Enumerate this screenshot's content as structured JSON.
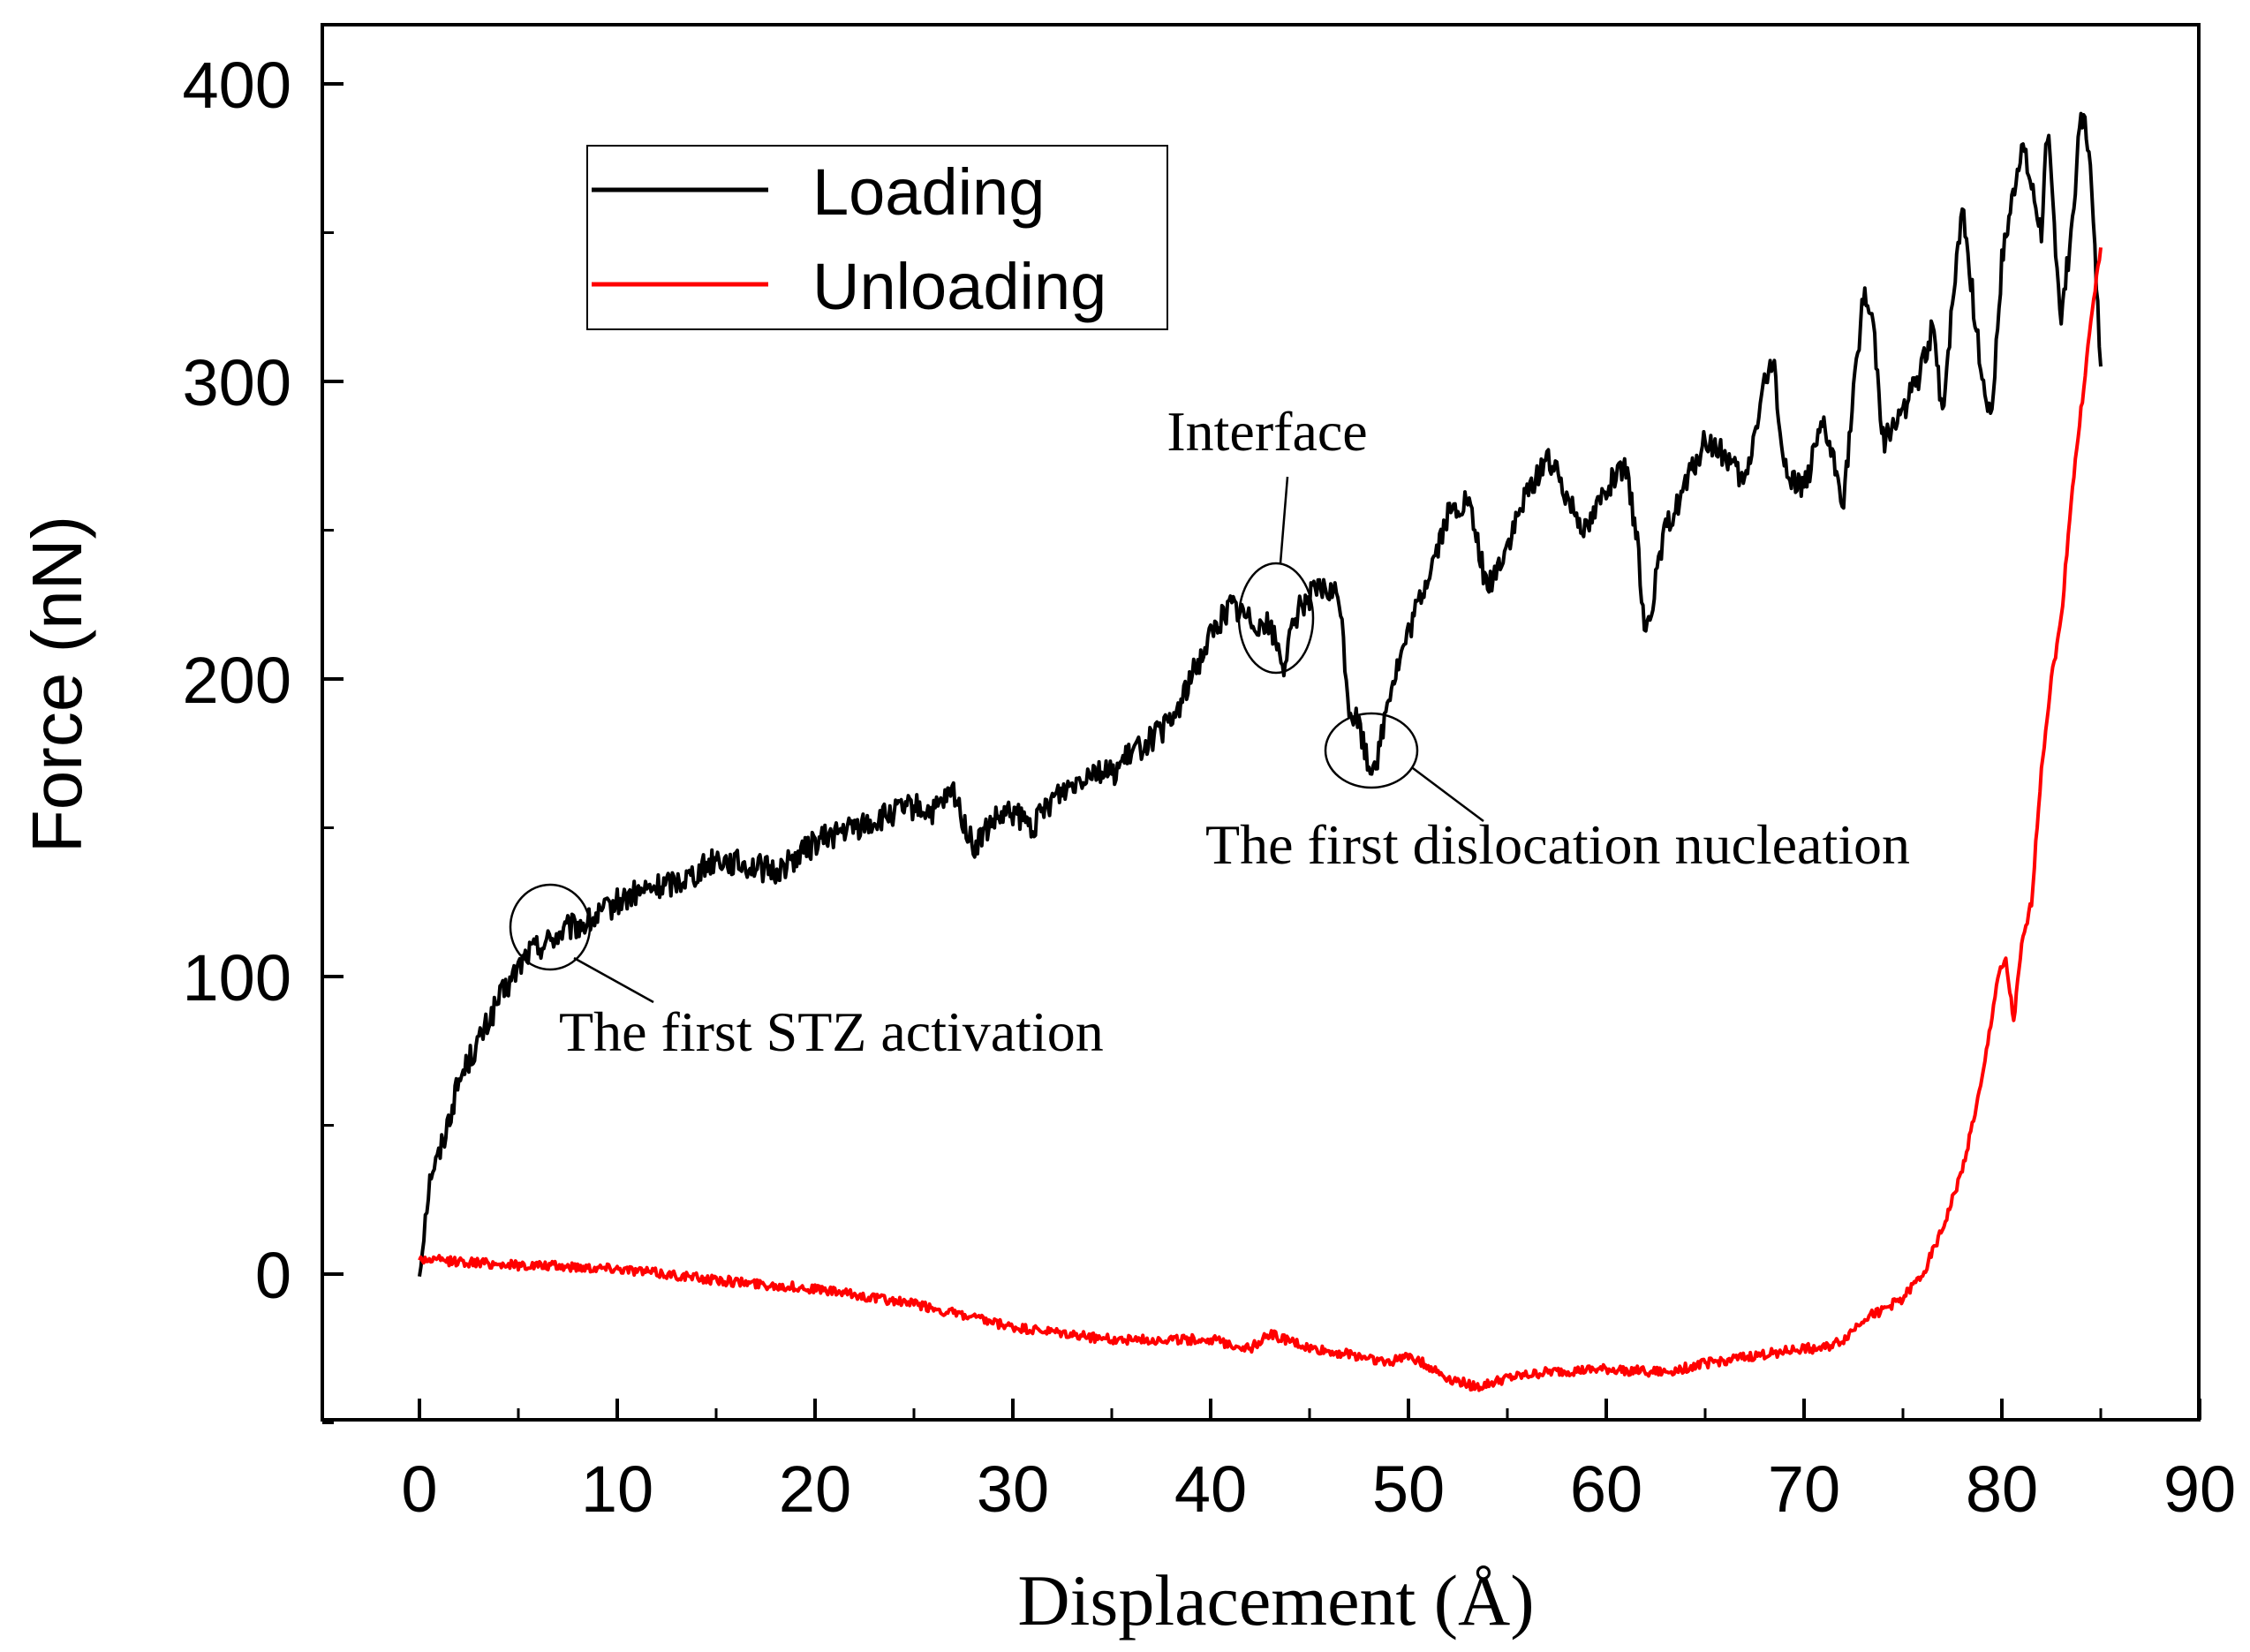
{
  "chart_data": {
    "type": "line",
    "xlabel": "Displacement (Å)",
    "ylabel": "Force (nN)",
    "xlim": [
      -5,
      90
    ],
    "ylim": [
      -50,
      410
    ],
    "xticks": [
      0,
      10,
      20,
      30,
      40,
      50,
      60,
      70,
      80,
      90
    ],
    "yticks": [
      0,
      100,
      200,
      300,
      400
    ],
    "legend": {
      "position": "top-left",
      "entries": [
        {
          "label": "Loading",
          "color": "#000000"
        },
        {
          "label": "Unloading",
          "color": "#ff0000"
        }
      ]
    },
    "series": [
      {
        "name": "Loading",
        "color": "#000000",
        "x": [
          0,
          0.3,
          0.6,
          0.9,
          1.2,
          1.6,
          2,
          2.5,
          3,
          3.5,
          4,
          4.5,
          5,
          5.5,
          6,
          6.5,
          7,
          7.5,
          8,
          8.5,
          9,
          10,
          11,
          12,
          13,
          14,
          15,
          16,
          17,
          18,
          19,
          20,
          21,
          22,
          23,
          24,
          25,
          26,
          27,
          28,
          29,
          30,
          31,
          32,
          33,
          34,
          35,
          36,
          37,
          38,
          39,
          40,
          41,
          42,
          43,
          43.7,
          44.5,
          45.5,
          46.5,
          47,
          47.5,
          48,
          48.5,
          49,
          50,
          51,
          52,
          53,
          54,
          55,
          56,
          57,
          58,
          59,
          60,
          61,
          61.5,
          62,
          63,
          64,
          65,
          66,
          67,
          68,
          68.5,
          69,
          70,
          71,
          72,
          72.5,
          73,
          73.5,
          74,
          75,
          76,
          76.5,
          77,
          78,
          79,
          79.5,
          80,
          81,
          82,
          82.3,
          83,
          83.5,
          84,
          84.4,
          85
        ],
        "y": [
          0,
          20,
          35,
          38,
          45,
          55,
          65,
          72,
          78,
          85,
          92,
          97,
          103,
          108,
          110,
          112,
          114,
          116,
          117,
          118,
          120,
          125,
          128,
          130,
          132,
          135,
          140,
          138,
          137,
          135,
          140,
          145,
          148,
          150,
          152,
          155,
          157,
          155,
          162,
          143,
          152,
          155,
          150,
          160,
          165,
          170,
          168,
          175,
          180,
          185,
          200,
          215,
          225,
          220,
          218,
          205,
          225,
          230,
          228,
          190,
          185,
          170,
          175,
          195,
          215,
          235,
          255,
          260,
          230,
          245,
          262,
          275,
          262,
          250,
          265,
          270,
          250,
          215,
          250,
          265,
          280,
          275,
          265,
          300,
          305,
          270,
          265,
          285,
          260,
          295,
          330,
          320,
          280,
          290,
          305,
          318,
          290,
          360,
          300,
          290,
          340,
          380,
          350,
          385,
          320,
          350,
          390,
          380,
          305
        ],
        "points_note": "wiggly loading curve"
      },
      {
        "name": "Unloading",
        "color": "#ff0000",
        "x": [
          0,
          5,
          10,
          15,
          20,
          25,
          30,
          35,
          40,
          42,
          43,
          45,
          48,
          49,
          50,
          52,
          53.5,
          55,
          57,
          60,
          63,
          65,
          68,
          70,
          71,
          72,
          73,
          74,
          75,
          76,
          77,
          78,
          79,
          79.8,
          80.2,
          80.6,
          81,
          81.5,
          82,
          82.5,
          83,
          83.5,
          84,
          84.5,
          85
        ],
        "y": [
          5,
          3,
          2,
          -2,
          -5,
          -10,
          -18,
          -22,
          -22,
          -25,
          -20,
          -25,
          -28,
          -30,
          -27,
          -35,
          -38,
          -35,
          -33,
          -32,
          -33,
          -30,
          -27,
          -25,
          -25,
          -22,
          -15,
          -12,
          -8,
          0,
          15,
          35,
          65,
          100,
          105,
          85,
          110,
          125,
          170,
          200,
          220,
          260,
          290,
          320,
          345
        ]
      }
    ],
    "annotations": [
      {
        "text": "Interface",
        "x": 43.5,
        "y": 215
      },
      {
        "text": "The first dislocation nucleation",
        "x": 48,
        "y": 170
      },
      {
        "text": "The first STZ activation",
        "x": 6.5,
        "y": 113
      }
    ]
  }
}
